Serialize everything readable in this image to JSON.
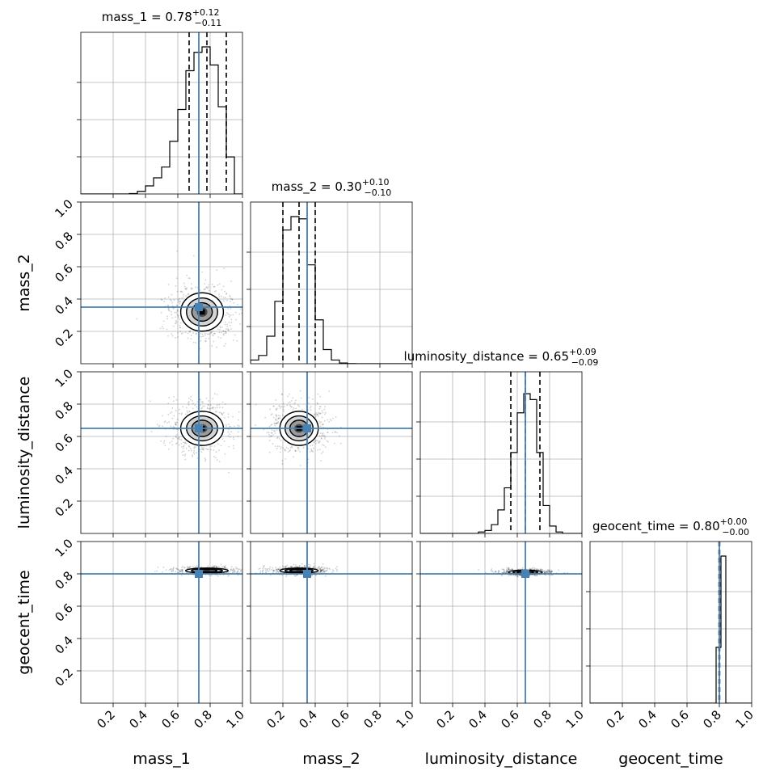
{
  "chart_data": {
    "type": "corner",
    "parameters": [
      "mass_1",
      "mass_2",
      "luminosity_distance",
      "geocent_time"
    ],
    "axis_labels": {
      "x": [
        "mass_1",
        "mass_2",
        "luminosity_distance",
        "geocent_time"
      ],
      "y": [
        "mass_2",
        "luminosity_distance",
        "geocent_time"
      ]
    },
    "titles": [
      {
        "parameter": "mass_1",
        "prefix": "mass_1 = ",
        "median": "0.78",
        "plus": "+0.12",
        "minus": "−0.11"
      },
      {
        "parameter": "mass_2",
        "prefix": "mass_2 = ",
        "median": "0.30",
        "plus": "+0.10",
        "minus": "−0.10"
      },
      {
        "parameter": "luminosity_distance",
        "prefix": "luminosity_distance = ",
        "median": "0.65",
        "plus": "+0.09",
        "minus": "−0.09"
      },
      {
        "parameter": "geocent_time",
        "prefix": "geocent_time = ",
        "median": "0.80",
        "plus": "+0.00",
        "minus": "−0.00"
      }
    ],
    "axis_range": [
      0,
      1
    ],
    "tick_labels": [
      "0.2",
      "0.4",
      "0.6",
      "0.8",
      "1.0"
    ],
    "tick_values": [
      0.2,
      0.4,
      0.6,
      0.8,
      1.0
    ],
    "grid": true,
    "truths": [
      0.73,
      0.35,
      0.65,
      0.8
    ],
    "truth_color": "#4682b4",
    "line_color": "#000000",
    "quantile_lines": [
      [
        0.67,
        0.78,
        0.9
      ],
      [
        0.2,
        0.3,
        0.4
      ],
      [
        0.56,
        0.65,
        0.74
      ],
      [
        0.798,
        0.8,
        0.802
      ]
    ],
    "histograms": [
      {
        "parameter": "mass_1",
        "bin_width": 0.05,
        "bin_edges_start": 0.3,
        "counts": [
          0.003,
          0.018,
          0.055,
          0.11,
          0.183,
          0.358,
          0.574,
          0.838,
          0.963,
          1.0,
          0.877,
          0.593,
          0.252
        ]
      },
      {
        "parameter": "mass_2",
        "bin_width": 0.05,
        "bin_edges_start": 0.0,
        "counts": [
          0.025,
          0.056,
          0.187,
          0.424,
          0.909,
          1.0,
          0.985,
          0.672,
          0.298,
          0.096,
          0.025,
          0.005,
          0.001
        ]
      },
      {
        "parameter": "luminosity_distance",
        "bin_width": 0.04,
        "bin_edges_start": 0.36,
        "counts": [
          0.01,
          0.02,
          0.06,
          0.16,
          0.31,
          0.55,
          0.82,
          0.95,
          0.91,
          0.55,
          0.19,
          0.05,
          0.01
        ]
      },
      {
        "parameter": "geocent_time",
        "bin_width": 0.03,
        "bin_edges_start": 0.75,
        "counts": [
          0.0,
          0.38,
          1.0,
          0.0
        ]
      }
    ],
    "contour_panels": [
      {
        "x": "mass_1",
        "y": "mass_2",
        "center": [
          0.75,
          0.32
        ],
        "sigma": [
          0.1,
          0.09
        ]
      },
      {
        "x": "mass_1",
        "y": "luminosity_distance",
        "center": [
          0.75,
          0.65
        ],
        "sigma": [
          0.1,
          0.08
        ]
      },
      {
        "x": "mass_2",
        "y": "luminosity_distance",
        "center": [
          0.3,
          0.65
        ],
        "sigma": [
          0.09,
          0.08
        ]
      },
      {
        "x": "mass_1",
        "y": "geocent_time",
        "center": [
          0.78,
          0.82
        ],
        "sigma": [
          0.1,
          0.012
        ]
      },
      {
        "x": "mass_2",
        "y": "geocent_time",
        "center": [
          0.3,
          0.82
        ],
        "sigma": [
          0.09,
          0.012
        ]
      },
      {
        "x": "luminosity_distance",
        "y": "geocent_time",
        "center": [
          0.65,
          0.81
        ],
        "sigma": [
          0.08,
          0.01
        ]
      }
    ]
  }
}
